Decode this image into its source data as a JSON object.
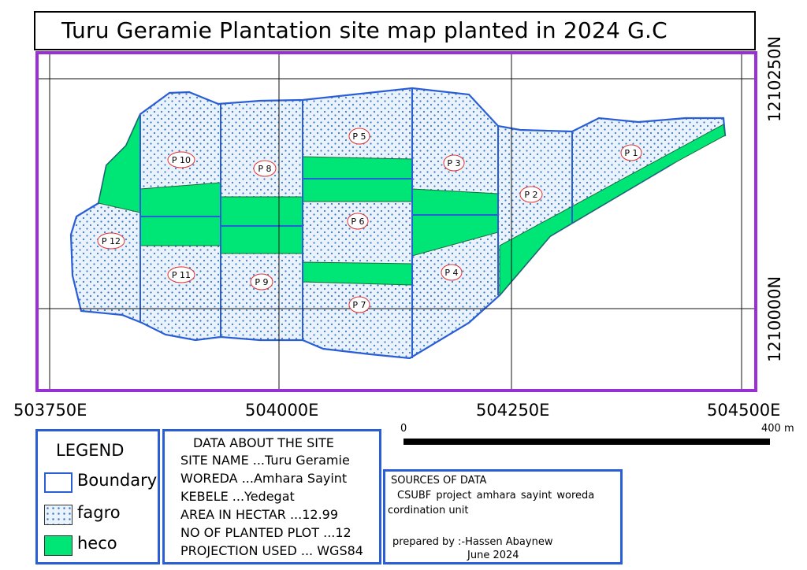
{
  "title": "Turu Geramie Plantation site map planted in 2024 G.C",
  "coordinates": {
    "easting": [
      "503750E",
      "504000E",
      "504250E",
      "504500E"
    ],
    "northing": [
      "1210250N",
      "1210000N"
    ]
  },
  "plots": [
    "P 1",
    "P 2",
    "P 3",
    "P 4",
    "P 5",
    "P 6",
    "P 7",
    "P 8",
    "P 9",
    "P 10",
    "P 11",
    "P 12"
  ],
  "legend": {
    "title": "LEGEND",
    "items": [
      {
        "label": "Boundary",
        "color": "#2a5ed6"
      },
      {
        "label": "fagro",
        "color": "#3a78c8"
      },
      {
        "label": "heco",
        "color": "#00e676"
      }
    ]
  },
  "site_data": {
    "title": "DATA ABOUT THE SITE",
    "lines": [
      "SITE NAME ...Turu Geramie",
      "WOREDA ...Amhara Sayint",
      "KEBELE ...Yedegat",
      "AREA IN HECTAR ...12.99",
      "NO OF PLANTED PLOT ...12",
      "PROJECTION USED ... WGS84"
    ]
  },
  "sources": {
    "title": "SOURCES OF DATA",
    "line1": "CSUBF  project  amhara  sayint  woreda",
    "line2": "cordination unit",
    "prepared": "prepared by :-Hassen Abaynew",
    "date": "June 2024"
  },
  "scale_bar": {
    "start": "0",
    "end": "400 m"
  },
  "colors": {
    "boundary": "#2a5ed6",
    "heco": "#00e676",
    "fagro_dot": "#3a78c8",
    "frame": "#9a2fd6",
    "plot_label_ring": "#e03030"
  }
}
